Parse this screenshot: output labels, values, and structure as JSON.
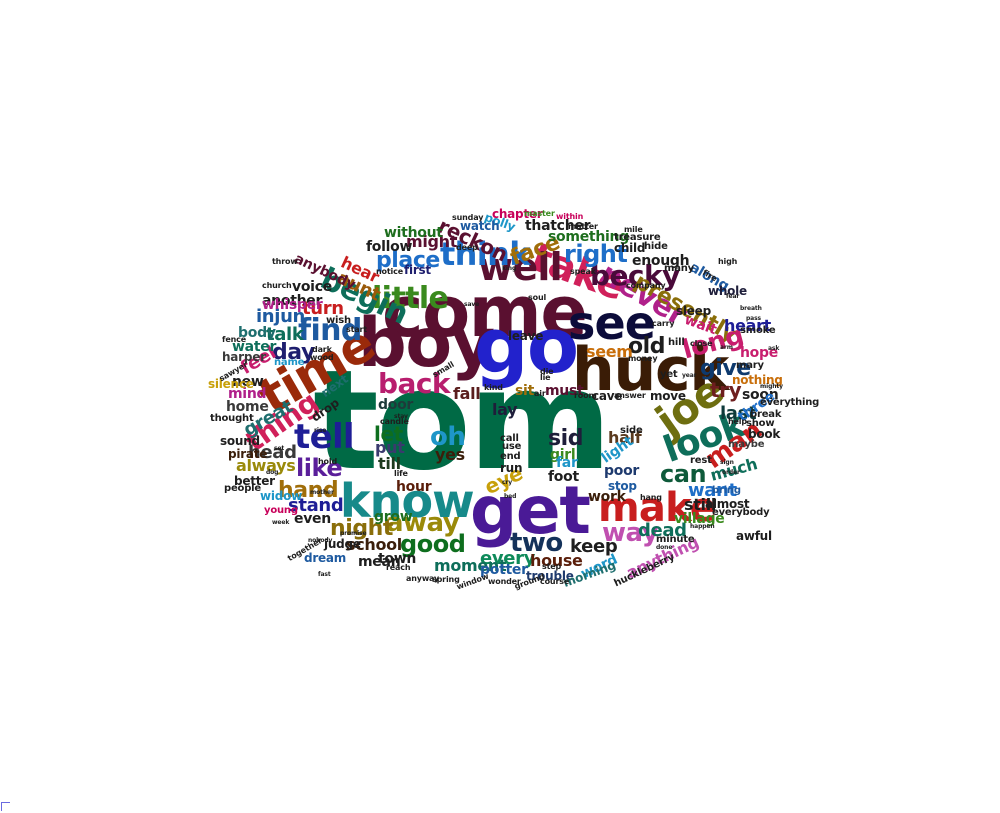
{
  "words": [
    {
      "text": "tom",
      "color": "#006a45"
    },
    {
      "text": "come",
      "color": "#5a1030"
    },
    {
      "text": "boy",
      "color": "#5a1030"
    },
    {
      "text": "go",
      "color": "#2222cc"
    },
    {
      "text": "huck",
      "color": "#3a1c06"
    },
    {
      "text": "get",
      "color": "#4a1a96"
    },
    {
      "text": "see",
      "color": "#0c0c3a"
    },
    {
      "text": "time",
      "color": "#9a2a0a"
    },
    {
      "text": "know",
      "color": "#178a8a"
    },
    {
      "text": "take",
      "color": "#d0205a"
    },
    {
      "text": "well",
      "color": "#5a1030"
    },
    {
      "text": "make",
      "color": "#c81e1e"
    },
    {
      "text": "joe",
      "color": "#6e6e10"
    },
    {
      "text": "look",
      "color": "#0e6e5a"
    },
    {
      "text": "think",
      "color": "#1e6ec8"
    },
    {
      "text": "never",
      "color": "#b0208a"
    },
    {
      "text": "little",
      "color": "#3a8a1e"
    },
    {
      "text": "begin",
      "color": "#0e6e5a"
    },
    {
      "text": "tell",
      "color": "#1e1e96"
    },
    {
      "text": "find",
      "color": "#1e5aa0"
    },
    {
      "text": "thing",
      "color": "#d0205a"
    },
    {
      "text": "back",
      "color": "#b81e6e"
    },
    {
      "text": "becky",
      "color": "#4a0a3a"
    },
    {
      "text": "right",
      "color": "#1e6ec8"
    },
    {
      "text": "presently",
      "color": "#8a6e0a"
    },
    {
      "text": "way",
      "color": "#c050b0"
    },
    {
      "text": "two",
      "color": "#14325a"
    },
    {
      "text": "good",
      "color": "#0e6e1e"
    },
    {
      "text": "away",
      "color": "#9a8a0a"
    },
    {
      "text": "can",
      "color": "#0e5a3a"
    },
    {
      "text": "man",
      "color": "#c81e1e"
    },
    {
      "text": "long",
      "color": "#c81e6e"
    },
    {
      "text": "give",
      "color": "#0e3a6e"
    },
    {
      "text": "old",
      "color": "#1e1e1e"
    },
    {
      "text": "place",
      "color": "#1e6ec8"
    },
    {
      "text": "reckon",
      "color": "#5a1030"
    },
    {
      "text": "face",
      "color": "#a06e0a"
    },
    {
      "text": "oh",
      "color": "#1e96c8"
    },
    {
      "text": "like",
      "color": "#5a1e9a"
    },
    {
      "text": "hand",
      "color": "#a06e0a"
    },
    {
      "text": "night",
      "color": "#8a6e0a"
    },
    {
      "text": "day",
      "color": "#1e1e6e"
    },
    {
      "text": "turn",
      "color": "#c81e1e"
    },
    {
      "text": "aunt",
      "color": "#9a5a0a"
    },
    {
      "text": "hear",
      "color": "#c81e1e"
    },
    {
      "text": "try",
      "color": "#6e1e1e"
    },
    {
      "text": "want",
      "color": "#1e6ec8"
    },
    {
      "text": "let",
      "color": "#0e6e1e"
    },
    {
      "text": "sid",
      "color": "#1e1e3a"
    },
    {
      "text": "eye",
      "color": "#c8a00a"
    },
    {
      "text": "keep",
      "color": "#1e1e1e"
    },
    {
      "text": "every",
      "color": "#0e8a5a"
    },
    {
      "text": "dead",
      "color": "#0e6e5a"
    },
    {
      "text": "heart",
      "color": "#1e1e96"
    },
    {
      "text": "last",
      "color": "#0e3a3a"
    },
    {
      "text": "great",
      "color": "#1e6e6e"
    },
    {
      "text": "head",
      "color": "#3a3a3a"
    },
    {
      "text": "stand",
      "color": "#1e1e96"
    },
    {
      "text": "school",
      "color": "#3a1e0a"
    },
    {
      "text": "feel",
      "color": "#c81e6e"
    },
    {
      "text": "talk",
      "color": "#0e6e5a"
    },
    {
      "text": "injun",
      "color": "#1e5aa0"
    },
    {
      "text": "always",
      "color": "#9a8a0a"
    },
    {
      "text": "moment",
      "color": "#0e6e5a"
    },
    {
      "text": "house",
      "color": "#5a1e0a"
    },
    {
      "text": "seem",
      "color": "#c86e0a"
    },
    {
      "text": "much",
      "color": "#0e6e5a"
    },
    {
      "text": "still",
      "color": "#1e1e1e"
    },
    {
      "text": "might",
      "color": "#5a1030"
    },
    {
      "text": "door",
      "color": "#1e3a3a"
    },
    {
      "text": "put",
      "color": "#3a3a6e"
    },
    {
      "text": "till",
      "color": "#1e3a1e"
    },
    {
      "text": "lay",
      "color": "#1e1e3a"
    },
    {
      "text": "fall",
      "color": "#5a1e1e"
    },
    {
      "text": "sit",
      "color": "#a06e0a"
    },
    {
      "text": "must",
      "color": "#5a1030"
    },
    {
      "text": "yes",
      "color": "#3a1e0a"
    },
    {
      "text": "enough",
      "color": "#1e1e1e"
    },
    {
      "text": "something",
      "color": "#1e6e1e"
    },
    {
      "text": "thatcher",
      "color": "#1e1e1e"
    },
    {
      "text": "half",
      "color": "#5a3a1e"
    },
    {
      "text": "light",
      "color": "#1e96c8"
    },
    {
      "text": "along",
      "color": "#1e5aa0"
    },
    {
      "text": "wait",
      "color": "#c81e6e"
    },
    {
      "text": "soon",
      "color": "#1e1e1e"
    },
    {
      "text": "work",
      "color": "#3a1e0a"
    },
    {
      "text": "stop",
      "color": "#1e5aa0"
    },
    {
      "text": "poor",
      "color": "#1e3a6e"
    },
    {
      "text": "another",
      "color": "#1e1e1e"
    },
    {
      "text": "new",
      "color": "#1e1e1e"
    },
    {
      "text": "hour",
      "color": "#5a1e0a"
    },
    {
      "text": "three",
      "color": "#1e6ec8"
    },
    {
      "text": "anything",
      "color": "#c050b0"
    },
    {
      "text": "word",
      "color": "#1e96c8"
    },
    {
      "text": "potter",
      "color": "#1e5aa0"
    },
    {
      "text": "run",
      "color": "#1e1e1e"
    },
    {
      "text": "foot",
      "color": "#1e1e1e"
    },
    {
      "text": "girl",
      "color": "#3a8a1e"
    },
    {
      "text": "far",
      "color": "#1e96c8"
    },
    {
      "text": "water",
      "color": "#0e6e5a"
    },
    {
      "text": "home",
      "color": "#3a3a3a"
    },
    {
      "text": "mind",
      "color": "#b0208a"
    },
    {
      "text": "even",
      "color": "#1e1e1e"
    },
    {
      "text": "village",
      "color": "#3a8a1e"
    },
    {
      "text": "whole",
      "color": "#1e1e3a"
    },
    {
      "text": "almost",
      "color": "#1e1e1e"
    },
    {
      "text": "awful",
      "color": "#1e1e1e"
    },
    {
      "text": "hope",
      "color": "#c81e6e"
    },
    {
      "text": "nothing",
      "color": "#c86e0a"
    },
    {
      "text": "book",
      "color": "#1e1e1e"
    },
    {
      "text": "trouble",
      "color": "#1e3a6e"
    },
    {
      "text": "morning",
      "color": "#1e6e6e"
    },
    {
      "text": "town",
      "color": "#1e1e1e"
    },
    {
      "text": "grow",
      "color": "#1e6e1e"
    },
    {
      "text": "mean",
      "color": "#1e1e1e"
    },
    {
      "text": "follow",
      "color": "#1e1e1e"
    },
    {
      "text": "without",
      "color": "#1e6e1e"
    },
    {
      "text": "first",
      "color": "#1e1e6e"
    },
    {
      "text": "voice",
      "color": "#1e1e1e"
    },
    {
      "text": "anybody",
      "color": "#5a1030"
    },
    {
      "text": "whisper",
      "color": "#b0208a"
    },
    {
      "text": "body",
      "color": "#1e6e6e"
    },
    {
      "text": "harper",
      "color": "#3a3a3a"
    },
    {
      "text": "silence",
      "color": "#c8a00a"
    },
    {
      "text": "sound",
      "color": "#1e1e1e"
    },
    {
      "text": "pirate",
      "color": "#3a1e0a"
    },
    {
      "text": "better",
      "color": "#1e1e1e"
    },
    {
      "text": "widow",
      "color": "#1e96c8"
    },
    {
      "text": "judge",
      "color": "#1e1e1e"
    },
    {
      "text": "dream",
      "color": "#1e5aa0"
    },
    {
      "text": "leave",
      "color": "#1e1e1e"
    },
    {
      "text": "cave",
      "color": "#1e1e1e"
    },
    {
      "text": "move",
      "color": "#1e1e1e"
    },
    {
      "text": "sleep",
      "color": "#1e1e1e"
    },
    {
      "text": "child",
      "color": "#1e1e1e"
    },
    {
      "text": "treasure",
      "color": "#1e1e1e"
    },
    {
      "text": "polly",
      "color": "#1e96c8"
    },
    {
      "text": "watch",
      "color": "#1e5aa0"
    },
    {
      "text": "chapter",
      "color": "#c8005a"
    },
    {
      "text": "next",
      "color": "#1e6e6e"
    },
    {
      "text": "drop",
      "color": "#1e1e1e"
    },
    {
      "text": "rest",
      "color": "#1e1e1e"
    },
    {
      "text": "bring",
      "color": "#1e5aa0"
    },
    {
      "text": "minute",
      "color": "#1e1e1e"
    },
    {
      "text": "huckleberry",
      "color": "#1e1e1e"
    },
    {
      "text": "break",
      "color": "#1e1e1e"
    },
    {
      "text": "show",
      "color": "#1e1e1e"
    },
    {
      "text": "maybe",
      "color": "#3a3a3a"
    },
    {
      "text": "mary",
      "color": "#1e1e1e"
    },
    {
      "text": "smoke",
      "color": "#1e1e1e"
    },
    {
      "text": "many",
      "color": "#1e1e1e"
    },
    {
      "text": "people",
      "color": "#1e1e1e"
    },
    {
      "text": "thought",
      "color": "#1e1e1e"
    },
    {
      "text": "young",
      "color": "#c8005a"
    },
    {
      "text": "name",
      "color": "#1e96c8"
    },
    {
      "text": "call",
      "color": "#1e1e1e"
    },
    {
      "text": "end",
      "color": "#1e1e1e"
    },
    {
      "text": "use",
      "color": "#1e1e1e"
    },
    {
      "text": "side",
      "color": "#1e1e1e"
    },
    {
      "text": "everything",
      "color": "#1e1e1e"
    },
    {
      "text": "everybody",
      "color": "#1e1e1e"
    },
    {
      "text": "hill",
      "color": "#1e1e1e"
    },
    {
      "text": "yet",
      "color": "#1e1e1e"
    },
    {
      "text": "hide",
      "color": "#1e1e1e"
    },
    {
      "text": "mile",
      "color": "#1e1e1e"
    },
    {
      "text": "matter",
      "color": "#1e1e1e"
    },
    {
      "text": "within",
      "color": "#c8005a"
    },
    {
      "text": "master",
      "color": "#3a8a1e"
    },
    {
      "text": "course",
      "color": "#1e1e1e"
    },
    {
      "text": "sunday",
      "color": "#1e1e1e"
    },
    {
      "text": "church",
      "color": "#1e1e1e"
    },
    {
      "text": "throw",
      "color": "#1e1e1e"
    },
    {
      "text": "together",
      "color": "#1e1e1e"
    },
    {
      "text": "reach",
      "color": "#1e1e1e"
    },
    {
      "text": "spring",
      "color": "#1e1e1e"
    },
    {
      "text": "window",
      "color": "#1e1e1e"
    },
    {
      "text": "wonder",
      "color": "#1e1e1e"
    },
    {
      "text": "ground",
      "color": "#1e1e1e"
    },
    {
      "text": "step",
      "color": "#1e1e1e"
    },
    {
      "text": "anyway",
      "color": "#1e1e1e"
    },
    {
      "text": "fence",
      "color": "#1e1e1e"
    },
    {
      "text": "notice",
      "color": "#1e1e1e"
    },
    {
      "text": "soul",
      "color": "#1e1e1e"
    },
    {
      "text": "dark",
      "color": "#1e1e1e"
    },
    {
      "text": "wood",
      "color": "#1e1e1e"
    },
    {
      "text": "wish",
      "color": "#1e1e1e"
    },
    {
      "text": "start",
      "color": "#1e1e1e"
    },
    {
      "text": "close",
      "color": "#1e1e1e"
    },
    {
      "text": "high",
      "color": "#1e1e1e"
    },
    {
      "text": "sawyer",
      "color": "#1e1e1e"
    },
    {
      "text": "money",
      "color": "#1e1e1e"
    },
    {
      "text": "nobody",
      "color": "#1e1e1e"
    },
    {
      "text": "die",
      "color": "#1e1e1e"
    },
    {
      "text": "air",
      "color": "#1e1e1e"
    },
    {
      "text": "kind",
      "color": "#1e1e1e"
    },
    {
      "text": "room",
      "color": "#1e1e1e"
    },
    {
      "text": "small",
      "color": "#1e1e1e"
    },
    {
      "text": "answer",
      "color": "#1e1e1e"
    },
    {
      "text": "help",
      "color": "#1e1e1e"
    },
    {
      "text": "lie",
      "color": "#1e1e1e"
    },
    {
      "text": "deep",
      "color": "#1e1e1e"
    },
    {
      "text": "speak",
      "color": "#1e1e1e"
    },
    {
      "text": "company",
      "color": "#1e1e1e"
    },
    {
      "text": "carry",
      "color": "#1e1e1e"
    },
    {
      "text": "candle",
      "color": "#1e1e1e"
    },
    {
      "text": "fire",
      "color": "#1e1e1e"
    },
    {
      "text": "arm",
      "color": "#1e1e1e"
    },
    {
      "text": "mighty",
      "color": "#1e1e1e"
    },
    {
      "text": "promise",
      "color": "#1e1e1e"
    },
    {
      "text": "order",
      "color": "#1e1e1e"
    },
    {
      "text": "happen",
      "color": "#1e1e1e"
    },
    {
      "text": "done",
      "color": "#1e1e1e"
    },
    {
      "text": "bed",
      "color": "#1e1e1e"
    },
    {
      "text": "year",
      "color": "#1e1e1e"
    },
    {
      "text": "hold",
      "color": "#1e1e1e"
    },
    {
      "text": "rise",
      "color": "#1e1e1e"
    },
    {
      "text": "week",
      "color": "#1e1e1e"
    },
    {
      "text": "stay",
      "color": "#1e1e1e"
    },
    {
      "text": "cry",
      "color": "#1e1e1e"
    },
    {
      "text": "life",
      "color": "#1e1e1e"
    },
    {
      "text": "hang",
      "color": "#1e1e1e"
    },
    {
      "text": "breath",
      "color": "#1e1e1e"
    },
    {
      "text": "ask",
      "color": "#1e1e1e"
    },
    {
      "text": "set",
      "color": "#1e1e1e"
    },
    {
      "text": "sign",
      "color": "#1e1e1e"
    },
    {
      "text": "dog",
      "color": "#1e1e1e"
    },
    {
      "text": "save",
      "color": "#1e1e1e"
    },
    {
      "text": "king",
      "color": "#1e1e1e"
    },
    {
      "text": "mother",
      "color": "#1e1e1e"
    },
    {
      "text": "fear",
      "color": "#1e1e1e"
    },
    {
      "text": "pass",
      "color": "#1e1e1e"
    },
    {
      "text": "fast",
      "color": "#1e1e1e"
    }
  ]
}
